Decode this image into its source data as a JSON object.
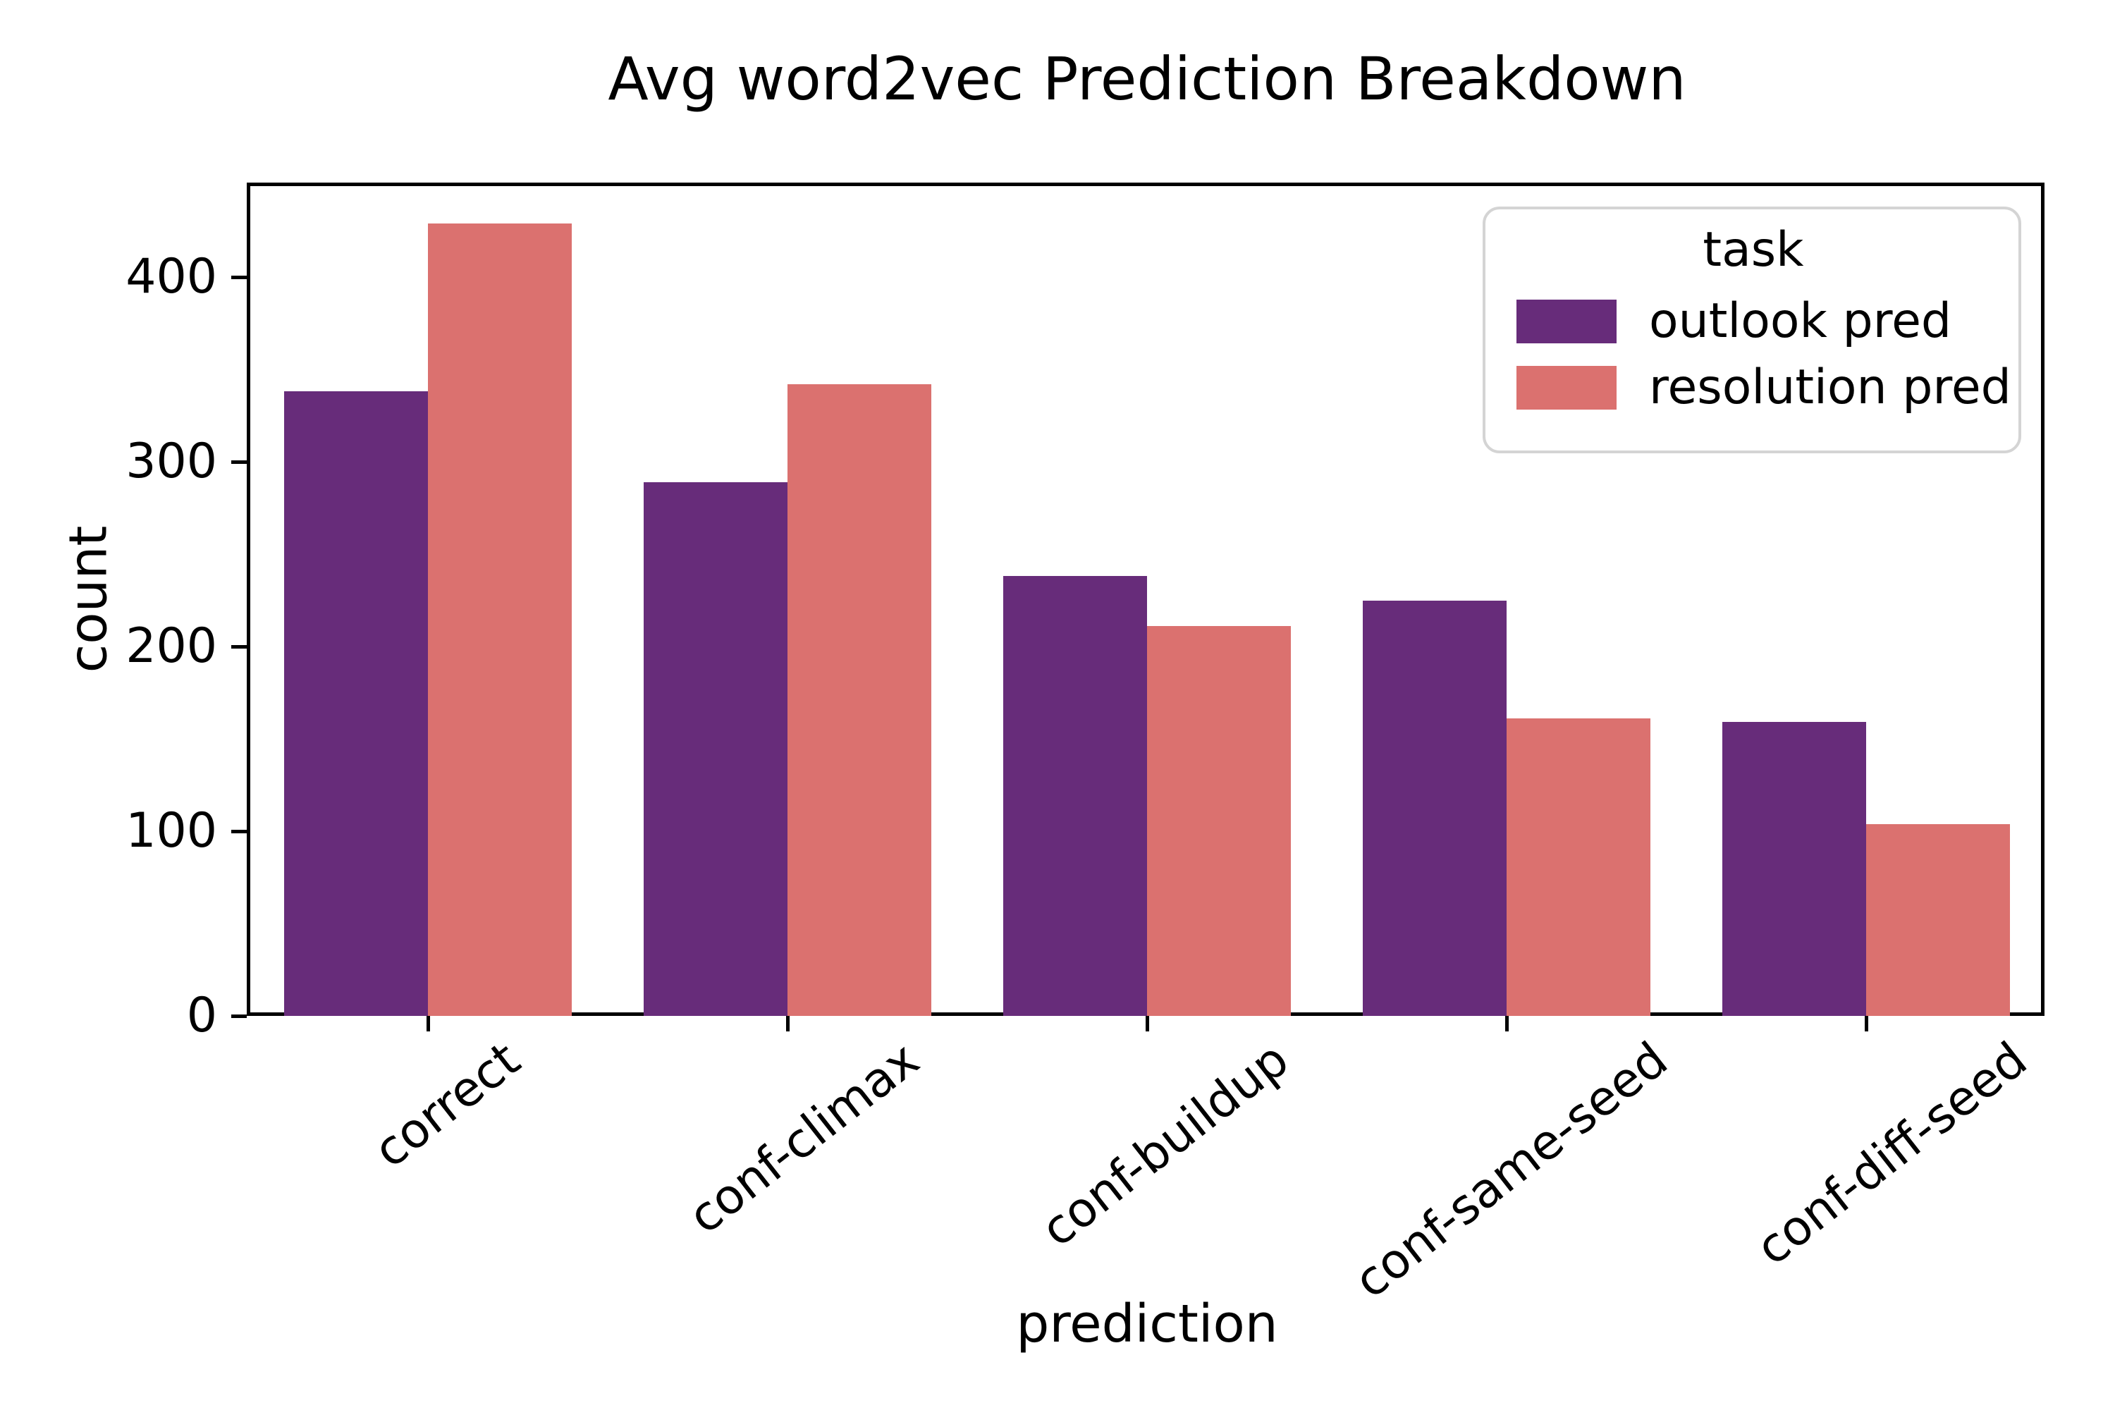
{
  "chart_data": {
    "type": "bar",
    "title": "Avg word2vec Prediction Breakdown",
    "xlabel": "prediction",
    "ylabel": "count",
    "categories": [
      "correct",
      "conf-climax",
      "conf-buildup",
      "conf-same-seed",
      "conf-diff-seed"
    ],
    "series": [
      {
        "name": "outlook pred",
        "color": "#672C7A",
        "values": [
          338,
          289,
          238,
          225,
          159
        ]
      },
      {
        "name": "resolution pred",
        "color": "#DB716F",
        "values": [
          429,
          342,
          211,
          161,
          104
        ]
      }
    ],
    "yticks": [
      0,
      100,
      200,
      300,
      400
    ],
    "ylim": [
      0,
      450
    ],
    "grid": false,
    "legend": {
      "title": "task",
      "position": "upper right",
      "border_color": "#d4d4d4"
    },
    "colors": {
      "axis": "#000000",
      "background": "#ffffff",
      "text": "#000000"
    }
  }
}
